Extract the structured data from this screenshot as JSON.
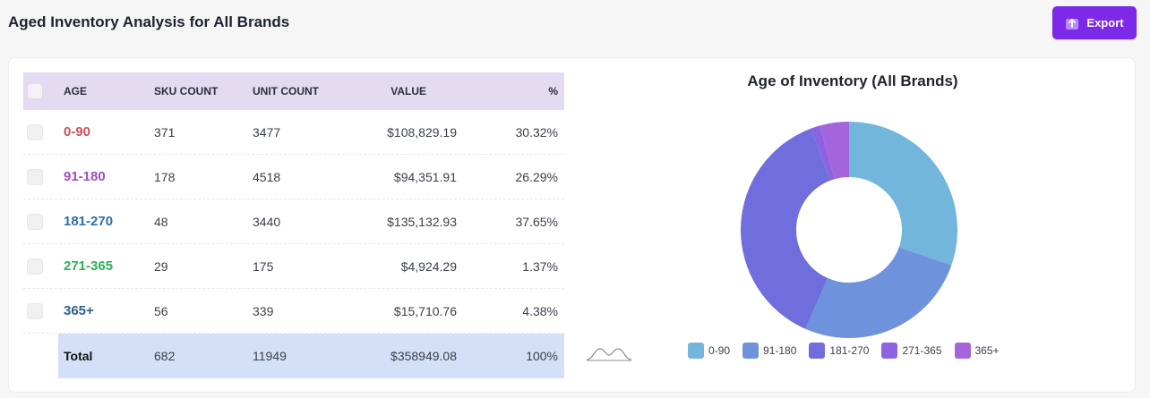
{
  "page": {
    "title": "Aged Inventory Analysis for All Brands",
    "export_label": "Export",
    "accent": "#7c2ae8"
  },
  "table": {
    "headers": {
      "age": "AGE",
      "sku": "SKU COUNT",
      "unit": "UNIT COUNT",
      "value": "VALUE",
      "pct": "%"
    },
    "rows": [
      {
        "age": "0-90",
        "sku": "371",
        "unit": "3477",
        "value": "$108,829.19",
        "pct": "30.32%",
        "color": "#c9525c"
      },
      {
        "age": "91-180",
        "sku": "178",
        "unit": "4518",
        "value": "$94,351.91",
        "pct": "26.29%",
        "color": "#9b4fc0"
      },
      {
        "age": "181-270",
        "sku": "48",
        "unit": "3440",
        "value": "$135,132.93",
        "pct": "37.65%",
        "color": "#2e6ea6"
      },
      {
        "age": "271-365",
        "sku": "29",
        "unit": "175",
        "value": "$4,924.29",
        "pct": "1.37%",
        "color": "#2fae58"
      },
      {
        "age": "365+",
        "sku": "56",
        "unit": "339",
        "value": "$15,710.76",
        "pct": "4.38%",
        "color": "#2e5f8a"
      }
    ],
    "total": {
      "label": "Total",
      "sku": "682",
      "unit": "11949",
      "value": "$358949.08",
      "pct": "100%"
    }
  },
  "chart_data": {
    "type": "pie",
    "title": "Age of Inventory (All Brands)",
    "categories": [
      "0-90",
      "91-180",
      "181-270",
      "271-365",
      "365+"
    ],
    "values": [
      30.32,
      26.29,
      37.65,
      1.37,
      4.38
    ],
    "colors": [
      "#72b6dc",
      "#6e93dc",
      "#6f6edc",
      "#8c63e0",
      "#a464dc"
    ],
    "hole": true,
    "legend_position": "bottom"
  },
  "icons": {
    "export": "upload-icon",
    "mini_chart": "distribution-curve-icon"
  }
}
